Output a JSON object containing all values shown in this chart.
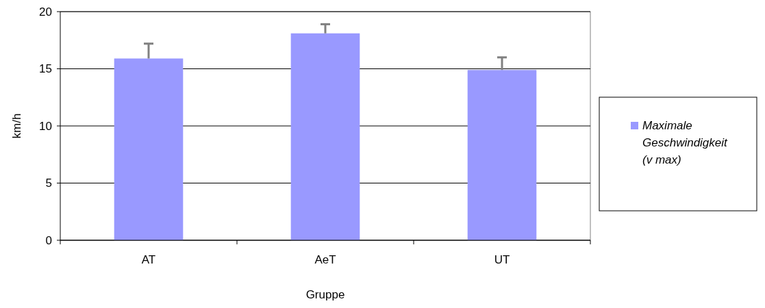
{
  "chart_data": {
    "type": "bar",
    "xlabel": "Gruppe",
    "ylabel": "km/h",
    "categories": [
      "AT",
      "AeT",
      "UT"
    ],
    "series": [
      {
        "name": "Maximale Geschwindigkeit (v max)",
        "color": "#9999ff",
        "values": [
          15.9,
          18.1,
          14.9
        ],
        "errors": [
          [
            15.9,
            17.2
          ],
          [
            18.1,
            18.9
          ],
          [
            14.9,
            16.0
          ]
        ]
      }
    ],
    "ylim": [
      0,
      20
    ],
    "yticks": [
      0,
      5,
      10,
      15,
      20
    ],
    "grid": "y",
    "legend": "right"
  }
}
